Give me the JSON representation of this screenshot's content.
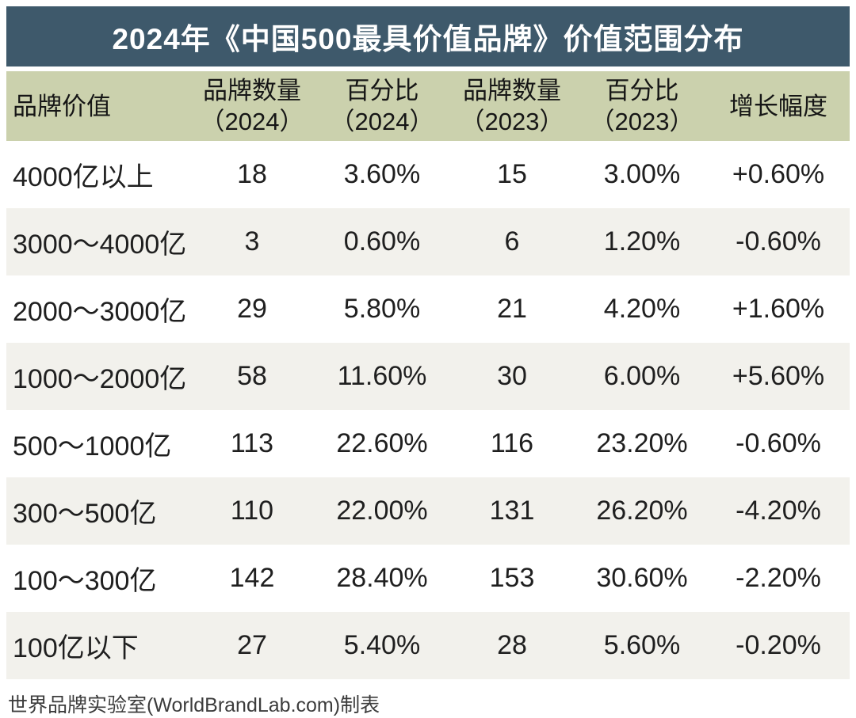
{
  "title": "2024年《中国500最具价值品牌》价值范围分布",
  "footer": "世界品牌实验室(WorldBrandLab.com)制表",
  "colors": {
    "title_bar_bg": "#3e596b",
    "title_text": "#ffffff",
    "header_bg": "#cbd1ad",
    "row_white": "#ffffff",
    "row_shaded": "#f2f1ec",
    "body_text": "#1f1f1f",
    "footer_text": "#3c3c3c"
  },
  "table": {
    "columns": [
      {
        "label": "品牌价值",
        "sub": ""
      },
      {
        "label": "品牌数量",
        "sub": "（2024）"
      },
      {
        "label": "百分比",
        "sub": "（2024）"
      },
      {
        "label": "品牌数量",
        "sub": "（2023）"
      },
      {
        "label": "百分比",
        "sub": "（2023）"
      },
      {
        "label": "增长幅度",
        "sub": ""
      }
    ],
    "rows": [
      [
        "4000亿以上",
        "18",
        "3.60%",
        "15",
        "3.00%",
        "+0.60%"
      ],
      [
        "3000〜4000亿",
        "3",
        "0.60%",
        "6",
        "1.20%",
        "-0.60%"
      ],
      [
        "2000〜3000亿",
        "29",
        "5.80%",
        "21",
        "4.20%",
        "+1.60%"
      ],
      [
        "1000〜2000亿",
        "58",
        "11.60%",
        "30",
        "6.00%",
        "+5.60%"
      ],
      [
        "500〜1000亿",
        "113",
        "22.60%",
        "116",
        "23.20%",
        "-0.60%"
      ],
      [
        "300〜500亿",
        "110",
        "22.00%",
        "131",
        "26.20%",
        "-4.20%"
      ],
      [
        "100〜300亿",
        "142",
        "28.40%",
        "153",
        "30.60%",
        "-2.20%"
      ],
      [
        "100亿以下",
        "27",
        "5.40%",
        "28",
        "5.60%",
        "-0.20%"
      ]
    ]
  },
  "chart_data": {
    "type": "table",
    "title": "2024年《中国500最具价值品牌》价值范围分布",
    "categories": [
      "4000亿以上",
      "3000〜4000亿",
      "2000〜3000亿",
      "1000〜2000亿",
      "500〜1000亿",
      "300〜500亿",
      "100〜300亿",
      "100亿以下"
    ],
    "series": [
      {
        "name": "品牌数量（2024）",
        "values": [
          18,
          3,
          29,
          58,
          113,
          110,
          142,
          27
        ]
      },
      {
        "name": "百分比（2024）",
        "values": [
          3.6,
          0.6,
          5.8,
          11.6,
          22.6,
          22.0,
          28.4,
          5.4
        ]
      },
      {
        "name": "品牌数量（2023）",
        "values": [
          15,
          6,
          21,
          30,
          116,
          131,
          153,
          28
        ]
      },
      {
        "name": "百分比（2023）",
        "values": [
          3.0,
          1.2,
          4.2,
          6.0,
          23.2,
          26.2,
          30.6,
          5.6
        ]
      },
      {
        "name": "增长幅度",
        "values": [
          0.6,
          -0.6,
          1.6,
          5.6,
          -0.6,
          -4.2,
          -2.2,
          -0.2
        ]
      }
    ],
    "source": "世界品牌实验室(WorldBrandLab.com)制表"
  }
}
